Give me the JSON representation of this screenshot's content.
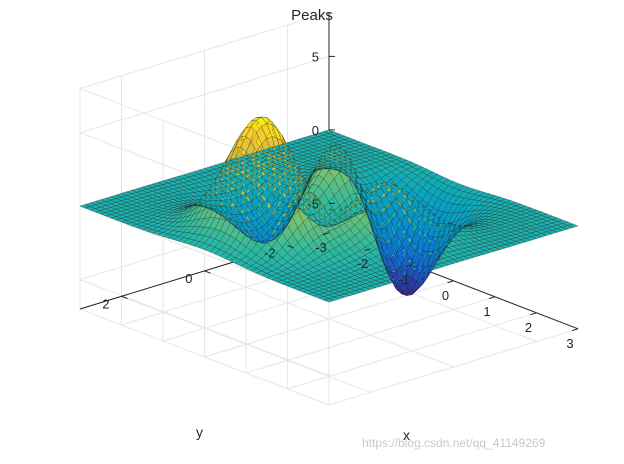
{
  "chart_data": {
    "type": "surface",
    "title": "Peaks",
    "function": "peaks",
    "grid": true,
    "colormap": "parula",
    "xlabel": "x",
    "ylabel": "y",
    "zlabel": "",
    "xlim": [
      -3,
      3
    ],
    "ylim": [
      -3,
      3
    ],
    "zlim": [
      -7,
      8
    ],
    "xticks": [
      "-3",
      "-2",
      "-1",
      "0",
      "1",
      "2",
      "3"
    ],
    "yticks": [
      "-2",
      "0",
      "2"
    ],
    "zticks": [
      "-5",
      "0",
      "5"
    ],
    "mesh": 49,
    "peak_max": 8.1,
    "peak_min": -6.55
  },
  "watermark": "https://blog.csdn.net/qq_41149269"
}
